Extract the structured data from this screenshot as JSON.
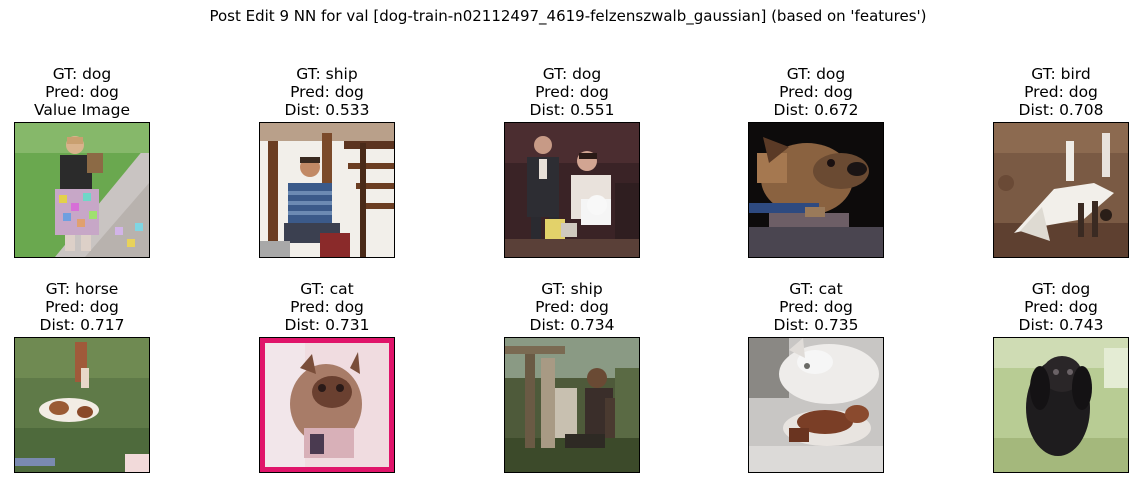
{
  "figure": {
    "title": "Post Edit 9 NN for val [dog-train-n02112497_4619-felzenszwalb_gaussian] (based on 'features')"
  },
  "panels": [
    {
      "gt": "GT: dog",
      "pred": "Pred: dog",
      "extra": "Value Image",
      "scene": "girl-with-dog-on-path"
    },
    {
      "gt": "GT: ship",
      "pred": "Pred: dog",
      "extra": "Dist: 0.533",
      "scene": "man-seated-on-deck"
    },
    {
      "gt": "GT: dog",
      "pred": "Pred: dog",
      "extra": "Dist: 0.551",
      "scene": "people-with-white-dog"
    },
    {
      "gt": "GT: dog",
      "pred": "Pred: dog",
      "extra": "Dist: 0.672",
      "scene": "brown-dog-dark-background"
    },
    {
      "gt": "GT: bird",
      "pred": "Pred: dog",
      "extra": "Dist: 0.708",
      "scene": "white-bird-on-ground"
    },
    {
      "gt": "GT: horse",
      "pred": "Pred: dog",
      "extra": "Dist: 0.717",
      "scene": "animal-lying-in-grass"
    },
    {
      "gt": "GT: cat",
      "pred": "Pred: dog",
      "extra": "Dist: 0.731",
      "scene": "cat-pink-frame"
    },
    {
      "gt": "GT: ship",
      "pred": "Pred: dog",
      "extra": "Dist: 0.734",
      "scene": "person-with-dog-outdoors"
    },
    {
      "gt": "GT: cat",
      "pred": "Pred: dog",
      "extra": "Dist: 0.735",
      "scene": "white-cat-brown-dog"
    },
    {
      "gt": "GT: dog",
      "pred": "Pred: dog",
      "extra": "Dist: 0.743",
      "scene": "black-dog-green-background"
    }
  ]
}
